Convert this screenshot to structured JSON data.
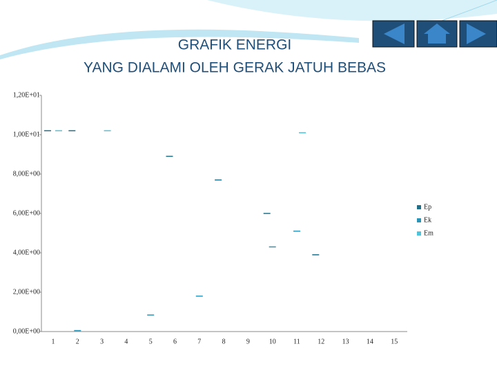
{
  "chart_data": {
    "type": "bar",
    "title": "GRAFIK ENERGI",
    "subtitle": "YANG DIALAMI OLEH GERAK JATUH BEBAS",
    "categories": [
      "1",
      "2",
      "3",
      "4",
      "5",
      "6",
      "7",
      "8",
      "9",
      "10",
      "11",
      "12",
      "13",
      "14",
      "15"
    ],
    "series": [
      {
        "name": "Ep",
        "color": "#1f6f8b",
        "values": [
          10.2,
          10.2,
          null,
          null,
          null,
          8.9,
          null,
          7.7,
          null,
          6.0,
          null,
          3.9,
          null,
          null,
          null
        ]
      },
      {
        "name": "Ek",
        "color": "#2b93b5",
        "values": [
          null,
          0.05,
          null,
          null,
          0.84,
          null,
          1.8,
          null,
          null,
          4.3,
          5.1,
          null,
          null,
          null,
          null
        ]
      },
      {
        "name": "Em",
        "color": "#4fc3d9",
        "values": [
          10.2,
          null,
          10.2,
          null,
          null,
          null,
          null,
          null,
          null,
          null,
          10.1,
          null,
          null,
          null,
          null
        ]
      }
    ],
    "ylim": [
      0,
      12
    ],
    "yticks": [
      {
        "value": 0,
        "label": "0,00E+00"
      },
      {
        "value": 2,
        "label": "2,00E+00"
      },
      {
        "value": 4,
        "label": "4,00E+00"
      },
      {
        "value": 6,
        "label": "6,00E+00"
      },
      {
        "value": 8,
        "label": "8,00E+00"
      },
      {
        "value": 10,
        "label": "1,00E+01"
      },
      {
        "value": 12,
        "label": "1,20E+01"
      }
    ],
    "grid": false,
    "legend": "right"
  }
}
